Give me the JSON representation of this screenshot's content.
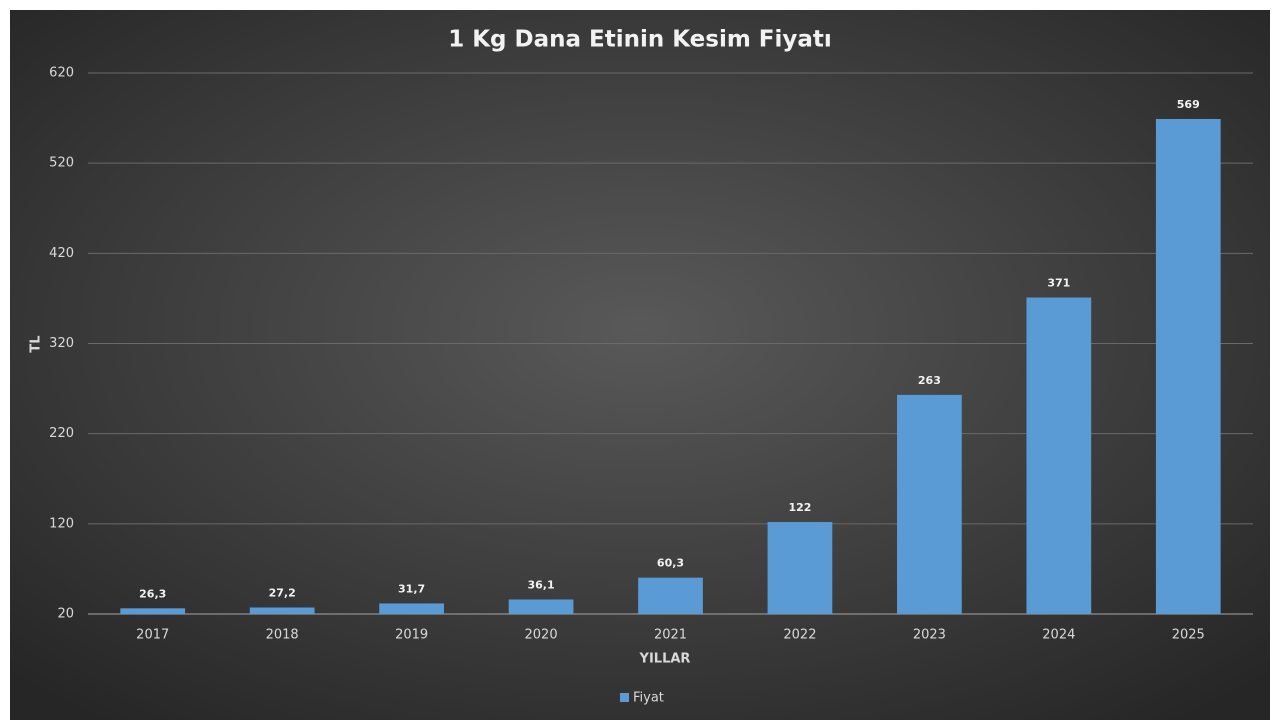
{
  "chart_data": {
    "type": "bar",
    "title": "1 Kg Dana Etinin Kesim Fiyatı",
    "x_label": "YILLAR",
    "y_label": "TL",
    "categories": [
      "2017",
      "2018",
      "2019",
      "2020",
      "2021",
      "2022",
      "2023",
      "2024",
      "2025"
    ],
    "series": [
      {
        "name": "Fiyat",
        "color": "#5b9bd5",
        "values": [
          26.3,
          27.2,
          31.7,
          36.1,
          60.3,
          122,
          263,
          371,
          569
        ],
        "value_labels": [
          "26,3",
          "27,2",
          "31,7",
          "36,1",
          "60,3",
          "122",
          "263",
          "371",
          "569"
        ]
      }
    ],
    "ylim": [
      20,
      620
    ],
    "yticks": [
      20,
      120,
      220,
      320,
      420,
      520,
      620
    ],
    "grid": true,
    "legend": "bottom"
  }
}
